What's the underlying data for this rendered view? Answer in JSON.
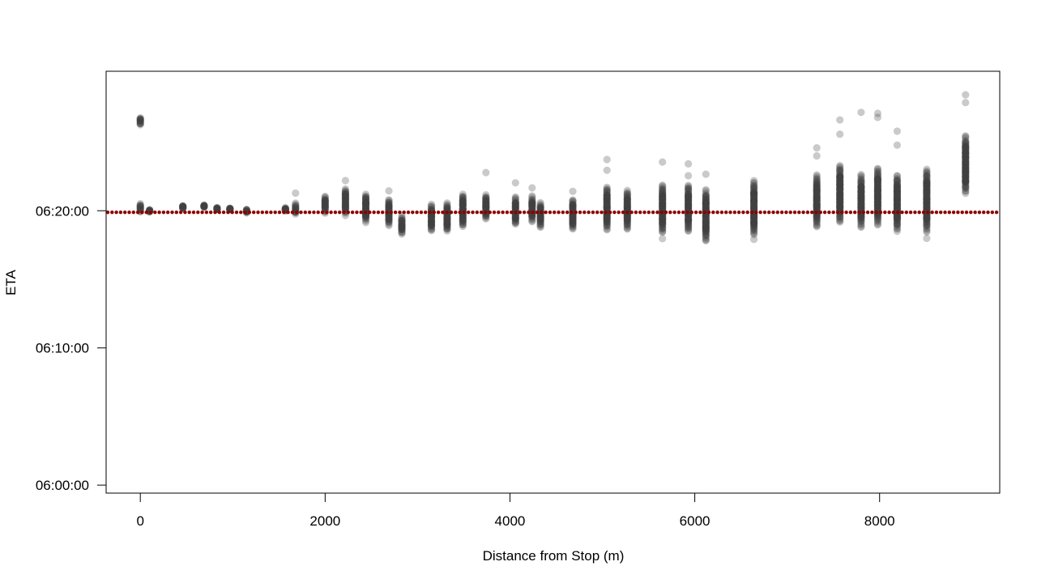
{
  "chart_data": {
    "type": "scatter",
    "title": "",
    "xlabel": "Distance from Stop (m)",
    "ylabel": "ETA",
    "xlim": [
      -370,
      9300
    ],
    "ylim": [
      "05:59:25",
      "06:30:10"
    ],
    "x_ticks": [
      0,
      2000,
      4000,
      6000,
      8000
    ],
    "y_ticks": [
      "06:00:00",
      "06:10:00",
      "06:20:00"
    ],
    "grid": false,
    "legend": "none",
    "point_color": "#404040",
    "reference_line": {
      "label": "06:19:53",
      "color": "#8b0000",
      "style": "dotted"
    },
    "series": [
      {
        "points": [
          {
            "x": 0,
            "lo": "06:19:53",
            "hi": "06:20:31"
          },
          {
            "x": 0,
            "lo": "06:26:17",
            "hi": "06:26:48"
          },
          {
            "x": 100,
            "lo": "06:19:55",
            "hi": "06:20:03"
          },
          {
            "x": 460,
            "lo": "06:20:12",
            "hi": "06:20:20"
          },
          {
            "x": 690,
            "lo": "06:20:16",
            "hi": "06:20:24"
          },
          {
            "x": 830,
            "lo": "06:20:05",
            "hi": "06:20:12"
          },
          {
            "x": 970,
            "lo": "06:20:03",
            "hi": "06:20:10"
          },
          {
            "x": 1150,
            "lo": "06:19:51",
            "hi": "06:20:06"
          },
          {
            "x": 1570,
            "lo": "06:19:58",
            "hi": "06:20:14"
          },
          {
            "x": 1680,
            "lo": "06:19:45",
            "hi": "06:20:31"
          },
          {
            "x": 2000,
            "lo": "06:19:52",
            "hi": "06:21:03"
          },
          {
            "x": 2220,
            "lo": "06:19:42",
            "hi": "06:21:37"
          },
          {
            "x": 2440,
            "lo": "06:19:10",
            "hi": "06:21:12"
          },
          {
            "x": 2690,
            "lo": "06:18:55",
            "hi": "06:20:49"
          },
          {
            "x": 2830,
            "lo": "06:18:16",
            "hi": "06:19:38"
          },
          {
            "x": 3150,
            "lo": "06:18:33",
            "hi": "06:20:26"
          },
          {
            "x": 3320,
            "lo": "06:18:31",
            "hi": "06:20:34"
          },
          {
            "x": 3490,
            "lo": "06:18:51",
            "hi": "06:21:12"
          },
          {
            "x": 3740,
            "lo": "06:19:23",
            "hi": "06:21:09"
          },
          {
            "x": 4060,
            "lo": "06:19:00",
            "hi": "06:20:59"
          },
          {
            "x": 4240,
            "lo": "06:19:13",
            "hi": "06:21:03"
          },
          {
            "x": 4330,
            "lo": "06:18:48",
            "hi": "06:20:34"
          },
          {
            "x": 4680,
            "lo": "06:18:39",
            "hi": "06:20:49"
          },
          {
            "x": 5050,
            "lo": "06:18:37",
            "hi": "06:21:43"
          },
          {
            "x": 5270,
            "lo": "06:18:39",
            "hi": "06:21:27"
          },
          {
            "x": 5650,
            "lo": "06:18:24",
            "hi": "06:21:53"
          },
          {
            "x": 5930,
            "lo": "06:18:29",
            "hi": "06:21:53"
          },
          {
            "x": 6120,
            "lo": "06:17:48",
            "hi": "06:21:30"
          },
          {
            "x": 6640,
            "lo": "06:18:14",
            "hi": "06:22:10"
          },
          {
            "x": 7320,
            "lo": "06:18:50",
            "hi": "06:22:35"
          },
          {
            "x": 7570,
            "lo": "06:19:09",
            "hi": "06:23:19"
          },
          {
            "x": 7800,
            "lo": "06:18:49",
            "hi": "06:22:36"
          },
          {
            "x": 7980,
            "lo": "06:18:59",
            "hi": "06:23:06"
          },
          {
            "x": 8190,
            "lo": "06:18:33",
            "hi": "06:22:35"
          },
          {
            "x": 8510,
            "lo": "06:18:29",
            "hi": "06:23:01"
          },
          {
            "x": 8930,
            "lo": "06:21:18",
            "hi": "06:25:27"
          }
        ],
        "outliers": [
          {
            "x": 1680,
            "y": "06:21:17"
          },
          {
            "x": 2220,
            "y": "06:22:12"
          },
          {
            "x": 2690,
            "y": "06:21:27"
          },
          {
            "x": 3740,
            "y": "06:22:47"
          },
          {
            "x": 4060,
            "y": "06:22:02"
          },
          {
            "x": 4240,
            "y": "06:21:40"
          },
          {
            "x": 4680,
            "y": "06:21:25"
          },
          {
            "x": 5050,
            "y": "06:23:44"
          },
          {
            "x": 5050,
            "y": "06:22:57"
          },
          {
            "x": 5650,
            "y": "06:23:33"
          },
          {
            "x": 5650,
            "y": "06:17:58"
          },
          {
            "x": 5930,
            "y": "06:23:25"
          },
          {
            "x": 5930,
            "y": "06:22:33"
          },
          {
            "x": 6120,
            "y": "06:22:40"
          },
          {
            "x": 6640,
            "y": "06:17:55"
          },
          {
            "x": 7320,
            "y": "06:24:35"
          },
          {
            "x": 7320,
            "y": "06:24:00"
          },
          {
            "x": 7570,
            "y": "06:26:37"
          },
          {
            "x": 7570,
            "y": "06:25:35"
          },
          {
            "x": 7800,
            "y": "06:27:10"
          },
          {
            "x": 7980,
            "y": "06:27:06"
          },
          {
            "x": 7980,
            "y": "06:26:48"
          },
          {
            "x": 8190,
            "y": "06:25:48"
          },
          {
            "x": 8190,
            "y": "06:24:47"
          },
          {
            "x": 8510,
            "y": "06:17:59"
          },
          {
            "x": 8930,
            "y": "06:28:27"
          },
          {
            "x": 8930,
            "y": "06:27:53"
          }
        ]
      }
    ]
  }
}
